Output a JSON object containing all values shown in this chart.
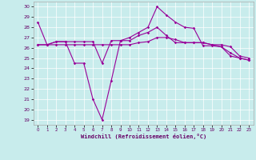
{
  "xlabel": "Windchill (Refroidissement éolien,°C)",
  "background_color": "#c8ecec",
  "line_color": "#990099",
  "xlim": [
    -0.5,
    23.5
  ],
  "ylim": [
    18.5,
    30.5
  ],
  "yticks": [
    19,
    20,
    21,
    22,
    23,
    24,
    25,
    26,
    27,
    28,
    29,
    30
  ],
  "xticks": [
    0,
    1,
    2,
    3,
    4,
    5,
    6,
    7,
    8,
    9,
    10,
    11,
    12,
    13,
    14,
    15,
    16,
    17,
    18,
    19,
    20,
    21,
    22,
    23
  ],
  "line1": [
    28.5,
    26.3,
    26.6,
    26.6,
    24.5,
    24.5,
    21.0,
    19.0,
    22.8,
    26.7,
    27.0,
    27.5,
    28.0,
    30.0,
    29.2,
    28.5,
    28.0,
    27.9,
    26.2,
    26.2,
    26.1,
    25.2,
    25.0,
    24.8
  ],
  "line2": [
    26.3,
    26.3,
    26.6,
    26.6,
    26.6,
    26.6,
    26.6,
    24.5,
    26.7,
    26.7,
    26.7,
    27.2,
    27.5,
    28.0,
    27.2,
    26.5,
    26.5,
    26.5,
    26.5,
    26.3,
    26.3,
    26.1,
    25.2,
    25.0
  ],
  "line3": [
    26.3,
    26.3,
    26.3,
    26.3,
    26.3,
    26.3,
    26.3,
    26.3,
    26.3,
    26.3,
    26.3,
    26.5,
    26.6,
    27.0,
    27.0,
    26.8,
    26.5,
    26.5,
    26.5,
    26.3,
    26.1,
    25.5,
    25.0,
    24.8
  ]
}
